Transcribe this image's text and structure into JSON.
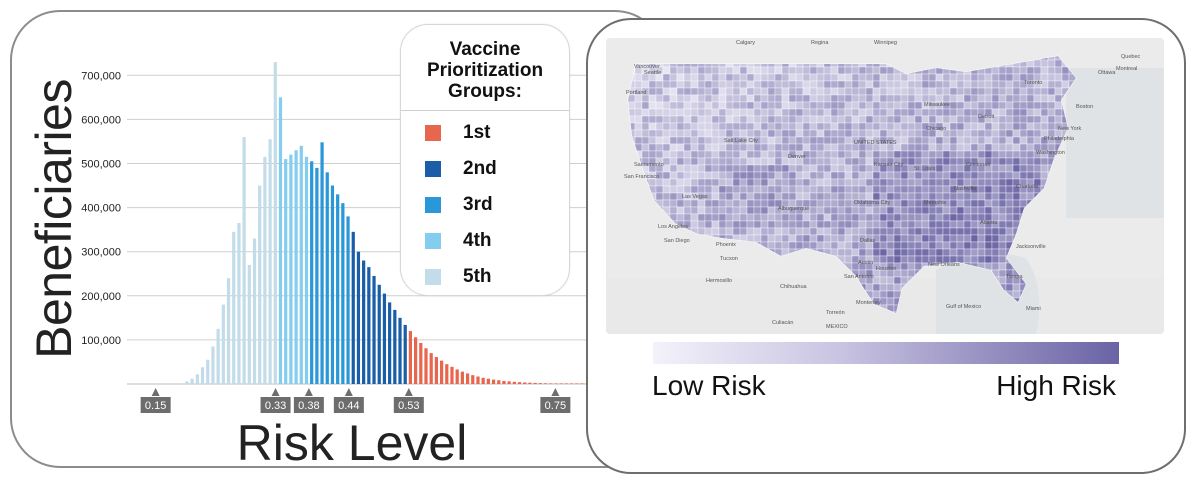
{
  "chart_data": {
    "type": "bar",
    "xlabel": "Risk Level",
    "ylabel": "Beneficiaries",
    "ylim": [
      0,
      780000
    ],
    "ytick_values": [
      100000,
      200000,
      300000,
      400000,
      500000,
      600000,
      700000
    ],
    "ytick_labels": [
      "100,000",
      "200,000",
      "300,000",
      "400,000",
      "500,000",
      "600,000",
      "700,000"
    ],
    "xtick_values": [
      0.15,
      0.33,
      0.38,
      0.44,
      0.53,
      0.75
    ],
    "xtick_labels": [
      "0.15",
      "0.33",
      "0.38",
      "0.44",
      "0.53",
      "0.75"
    ],
    "bin_width": 0.0078,
    "x_start": 0.197,
    "values": [
      6000,
      12000,
      22000,
      38000,
      55000,
      85000,
      125000,
      180000,
      240000,
      345000,
      365000,
      560000,
      270000,
      330000,
      450000,
      515000,
      555000,
      730000,
      650000,
      510000,
      520000,
      530000,
      540000,
      515000,
      505000,
      490000,
      548000,
      480000,
      450000,
      430000,
      410000,
      380000,
      345000,
      300000,
      280000,
      265000,
      245000,
      225000,
      205000,
      185000,
      168000,
      150000,
      134000,
      120000,
      106000,
      93000,
      81000,
      70000,
      61000,
      53000,
      45000,
      39000,
      33000,
      28000,
      24000,
      20000,
      17000,
      14000,
      12000,
      10000,
      8500,
      7000,
      6000,
      5000,
      4200,
      3500,
      2900,
      2400,
      2000,
      1700,
      1400,
      1100,
      900,
      700,
      600,
      500,
      400,
      300
    ],
    "groups": [
      {
        "name": "1st",
        "color": "#e8654e",
        "from": 0.53,
        "to": 0.85
      },
      {
        "name": "2nd",
        "color": "#1a5ea8",
        "from": 0.44,
        "to": 0.53
      },
      {
        "name": "3rd",
        "color": "#2a97d8",
        "from": 0.38,
        "to": 0.44
      },
      {
        "name": "4th",
        "color": "#84cdee",
        "from": 0.33,
        "to": 0.38
      },
      {
        "name": "5th",
        "color": "#c3dcea",
        "from": 0.15,
        "to": 0.33
      }
    ]
  },
  "legend": {
    "title": "Vaccine Prioritization Groups:",
    "items": [
      {
        "label": "1st",
        "color": "#e8654e"
      },
      {
        "label": "2nd",
        "color": "#1a5ea8"
      },
      {
        "label": "3rd",
        "color": "#2a97d8"
      },
      {
        "label": "4th",
        "color": "#84cdee"
      },
      {
        "label": "5th",
        "color": "#c3dcea"
      }
    ]
  },
  "map": {
    "scale_low": "Low Risk",
    "scale_high": "High Risk",
    "scale_colors": [
      "#f3f2fa",
      "#6a63a4"
    ],
    "places": [
      "Calgary",
      "Regina",
      "Winnipeg",
      "Vancouver",
      "Seattle",
      "Portland",
      "Ottawa",
      "Montreal",
      "Quebec",
      "Toronto",
      "Milwaukee",
      "Chicago",
      "Detroit",
      "Boston",
      "New York",
      "Philadelphia",
      "Washington",
      "Salt Lake City",
      "Denver",
      "UNITED STATES",
      "Kansas City",
      "St. Louis",
      "Cincinnati",
      "Sacramento",
      "San Francisco",
      "Las Vegas",
      "Los Angeles",
      "San Diego",
      "Phoenix",
      "Tucson",
      "Albuquerque",
      "Oklahoma City",
      "Memphis",
      "Nashville",
      "Charlotte",
      "Atlanta",
      "Dallas",
      "Houston",
      "San Antonio",
      "Austin",
      "New Orleans",
      "Jacksonville",
      "Tampa",
      "Miami",
      "Hermosillo",
      "Chihuahua",
      "Torreón",
      "Monterrey",
      "Culiacán",
      "MEXICO",
      "Gulf of Mexico"
    ]
  }
}
